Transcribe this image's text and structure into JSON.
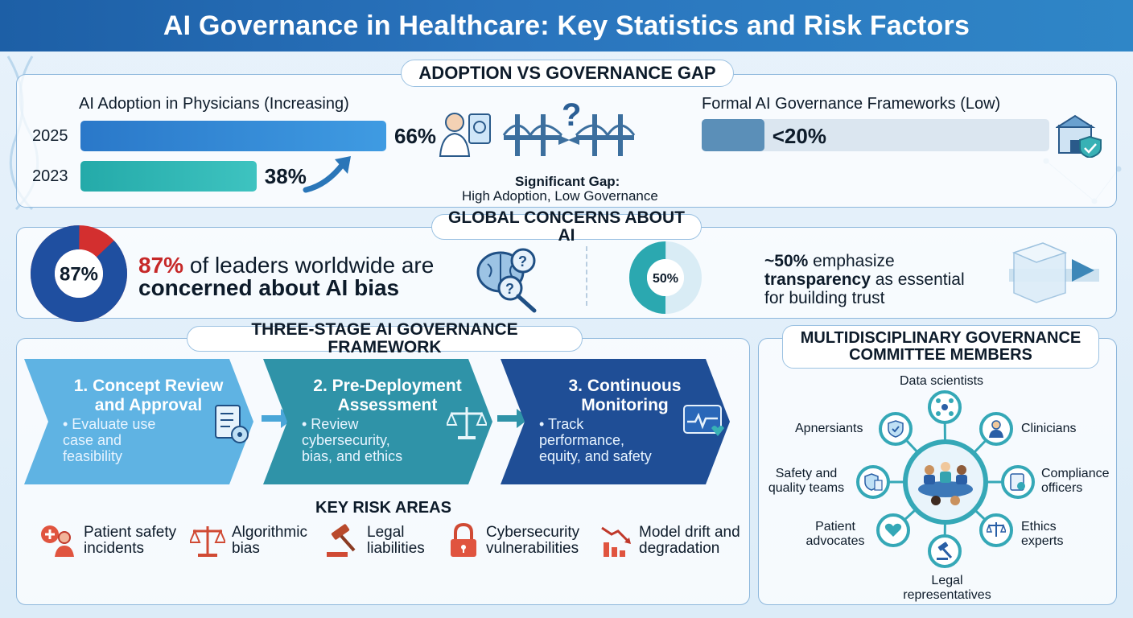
{
  "title": "AI Governance in Healthcare: Key Statistics and Risk Factors",
  "adoption_section": {
    "heading": "ADOPTION VS GOVERNANCE GAP",
    "physicians_title": "AI Adoption in Physicians (Increasing)",
    "bars": [
      {
        "year": "2025",
        "value_label": "66%",
        "value": 66
      },
      {
        "year": "2023",
        "value_label": "38%",
        "value": 38
      }
    ],
    "gap_title": "Significant Gap:",
    "gap_sub": "High Adoption, Low Governance",
    "governance_title": "Formal AI Governance Frameworks (Low)",
    "governance_value_label": "<20%",
    "governance_value": 20,
    "colors": {
      "bar_2025": "#2e86d6",
      "bar_2023": "#2bb3b1",
      "governance_bar": "#5b8fb8"
    }
  },
  "concerns_section": {
    "heading": "GLOBAL CONCERNS ABOUT AI",
    "bias_value": 87,
    "bias_label": "87%",
    "bias_text_pct": "87%",
    "bias_text_rest": " of leaders worldwide are",
    "bias_text_bold": "concerned about AI bias",
    "transparency_value": 50,
    "transparency_label": "50%",
    "transparency_pct": "~50%",
    "transparency_rest1": " emphasize",
    "transparency_bold": "transparency",
    "transparency_rest2": " as essential",
    "transparency_rest3": "for building trust",
    "colors": {
      "bias_main": "#1f4fa0",
      "bias_rest": "#d32f2f",
      "accent_red": "#c62828",
      "transparency": "#2ba8b0"
    }
  },
  "framework_section": {
    "heading": "THREE-STAGE AI GOVERNANCE FRAMEWORK",
    "stages": [
      {
        "title": "1. Concept Review and Approval",
        "desc": "• Evaluate use case and feasibility",
        "color": "#5fb3e3"
      },
      {
        "title": "2. Pre-Deployment Assessment",
        "desc": "• Review cybersecurity, bias, and ethics",
        "color": "#2f93a8"
      },
      {
        "title": "3. Continuous Monitoring",
        "desc": "• Track performance, equity, and safety",
        "color": "#1f4e96"
      }
    ],
    "risk_heading": "KEY RISK AREAS",
    "risks": [
      {
        "label": "Patient safety incidents",
        "icon": "patient-safety-icon"
      },
      {
        "label": "Algorithmic bias",
        "icon": "scales-icon"
      },
      {
        "label": "Legal liabilities",
        "icon": "gavel-icon"
      },
      {
        "label": "Cybersecurity vulnerabilities",
        "icon": "padlock-icon"
      },
      {
        "label": "Model drift and degradation",
        "icon": "declining-chart-icon"
      }
    ]
  },
  "committee_section": {
    "heading": "MULTIDISCIPLINARY GOVERNANCE COMMITTEE MEMBERS",
    "members": [
      {
        "label": "Data scientists"
      },
      {
        "label": "Clinicians"
      },
      {
        "label": "Compliance officers"
      },
      {
        "label": "Ethics experts"
      },
      {
        "label": "Legal representatives"
      },
      {
        "label": "Patient advocates"
      },
      {
        "label": "Safety and quality teams"
      },
      {
        "label": "Apnersiants"
      }
    ]
  }
}
